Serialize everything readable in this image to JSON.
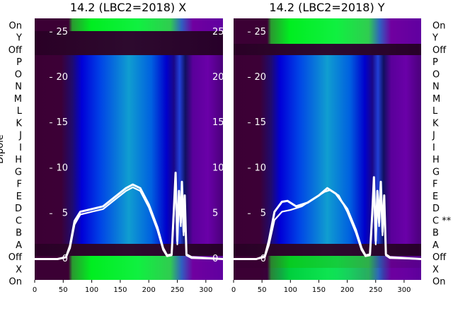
{
  "chart_data": [
    {
      "type": "heatmap",
      "title": "14.2 (LBC2=2018) X",
      "ylabel": "Dipole",
      "row_labels": [
        "On",
        "Y",
        "Off",
        "P",
        "O",
        "N",
        "M",
        "L",
        "K",
        "J",
        "I",
        "H",
        "G",
        "F",
        "E",
        "D",
        "C",
        "B",
        "A",
        "Off",
        "X",
        "On"
      ],
      "xlim": [
        0,
        330
      ],
      "x_ticks": [
        0,
        50,
        100,
        150,
        200,
        250,
        300
      ],
      "overlay_ylim": [
        -2.3,
        26.5
      ],
      "overlay_y_ticks": [
        0,
        5,
        10,
        15,
        20,
        25
      ],
      "series": [
        {
          "values": [
            [
              0,
              0
            ],
            [
              40,
              0
            ],
            [
              55,
              0.2
            ],
            [
              62,
              1.5
            ],
            [
              70,
              4.2
            ],
            [
              80,
              5.2
            ],
            [
              100,
              5.5
            ],
            [
              120,
              5.8
            ],
            [
              140,
              6.8
            ],
            [
              160,
              7.8
            ],
            [
              172,
              8.2
            ],
            [
              185,
              7.8
            ],
            [
              200,
              6.0
            ],
            [
              215,
              3.5
            ],
            [
              225,
              1.2
            ],
            [
              232,
              0.4
            ],
            [
              240,
              0.5
            ],
            [
              244,
              5.5
            ],
            [
              247,
              9.5
            ],
            [
              250,
              2.0
            ],
            [
              253,
              7.5
            ],
            [
              256,
              4.0
            ],
            [
              258,
              8.5
            ],
            [
              261,
              3.0
            ],
            [
              263,
              7.0
            ],
            [
              266,
              0.5
            ],
            [
              275,
              0.2
            ],
            [
              330,
              0
            ]
          ]
        },
        {
          "values": [
            [
              0,
              0
            ],
            [
              40,
              0
            ],
            [
              55,
              0.2
            ],
            [
              62,
              1.2
            ],
            [
              70,
              3.8
            ],
            [
              80,
              4.9
            ],
            [
              100,
              5.2
            ],
            [
              120,
              5.5
            ],
            [
              140,
              6.5
            ],
            [
              160,
              7.5
            ],
            [
              172,
              7.9
            ],
            [
              185,
              7.5
            ],
            [
              200,
              5.7
            ],
            [
              215,
              3.2
            ],
            [
              225,
              1.0
            ],
            [
              232,
              0.3
            ],
            [
              240,
              0.4
            ],
            [
              244,
              5.0
            ],
            [
              247,
              9.0
            ],
            [
              250,
              1.6
            ],
            [
              253,
              7.0
            ],
            [
              256,
              3.6
            ],
            [
              258,
              8.0
            ],
            [
              261,
              2.6
            ],
            [
              263,
              6.5
            ],
            [
              266,
              0.4
            ],
            [
              275,
              0.1
            ],
            [
              330,
              0
            ]
          ]
        }
      ]
    },
    {
      "type": "heatmap",
      "title": "14.2 (LBC2=2018) Y",
      "row_labels": [
        "On",
        "Y",
        "Off",
        "P",
        "O",
        "N",
        "M",
        "L",
        "K",
        "J",
        "I",
        "H",
        "G",
        "F",
        "E",
        "D",
        "C **",
        "B",
        "A",
        "Off",
        "X",
        "On"
      ],
      "xlim": [
        0,
        330
      ],
      "x_ticks": [
        0,
        50,
        100,
        150,
        200,
        250,
        300
      ],
      "overlay_ylim": [
        -2.3,
        26.5
      ],
      "overlay_y_ticks": [
        0,
        5,
        10,
        15,
        20,
        25
      ],
      "series": [
        {
          "values": [
            [
              0,
              0
            ],
            [
              40,
              0
            ],
            [
              55,
              0.3
            ],
            [
              62,
              2.0
            ],
            [
              72,
              5.2
            ],
            [
              85,
              6.3
            ],
            [
              95,
              6.4
            ],
            [
              110,
              5.8
            ],
            [
              130,
              6.2
            ],
            [
              150,
              7.0
            ],
            [
              165,
              7.8
            ],
            [
              180,
              7.2
            ],
            [
              200,
              5.5
            ],
            [
              215,
              3.2
            ],
            [
              225,
              1.2
            ],
            [
              232,
              0.4
            ],
            [
              240,
              0.5
            ],
            [
              244,
              5.0
            ],
            [
              247,
              9.0
            ],
            [
              250,
              2.0
            ],
            [
              253,
              7.5
            ],
            [
              256,
              4.0
            ],
            [
              259,
              8.5
            ],
            [
              262,
              3.0
            ],
            [
              265,
              7.0
            ],
            [
              268,
              0.5
            ],
            [
              275,
              0.2
            ],
            [
              330,
              0
            ]
          ]
        },
        {
          "values": [
            [
              0,
              0
            ],
            [
              40,
              0
            ],
            [
              55,
              0.2
            ],
            [
              62,
              1.5
            ],
            [
              72,
              4.3
            ],
            [
              85,
              5.2
            ],
            [
              100,
              5.4
            ],
            [
              120,
              5.8
            ],
            [
              140,
              6.6
            ],
            [
              160,
              7.4
            ],
            [
              170,
              7.6
            ],
            [
              185,
              7.0
            ],
            [
              200,
              5.2
            ],
            [
              215,
              2.9
            ],
            [
              225,
              1.0
            ],
            [
              232,
              0.3
            ],
            [
              240,
              0.4
            ],
            [
              244,
              4.6
            ],
            [
              247,
              8.6
            ],
            [
              250,
              1.6
            ],
            [
              253,
              7.0
            ],
            [
              256,
              3.6
            ],
            [
              259,
              8.0
            ],
            [
              262,
              2.6
            ],
            [
              265,
              6.6
            ],
            [
              268,
              0.4
            ],
            [
              275,
              0.1
            ],
            [
              330,
              0
            ]
          ]
        }
      ]
    }
  ]
}
